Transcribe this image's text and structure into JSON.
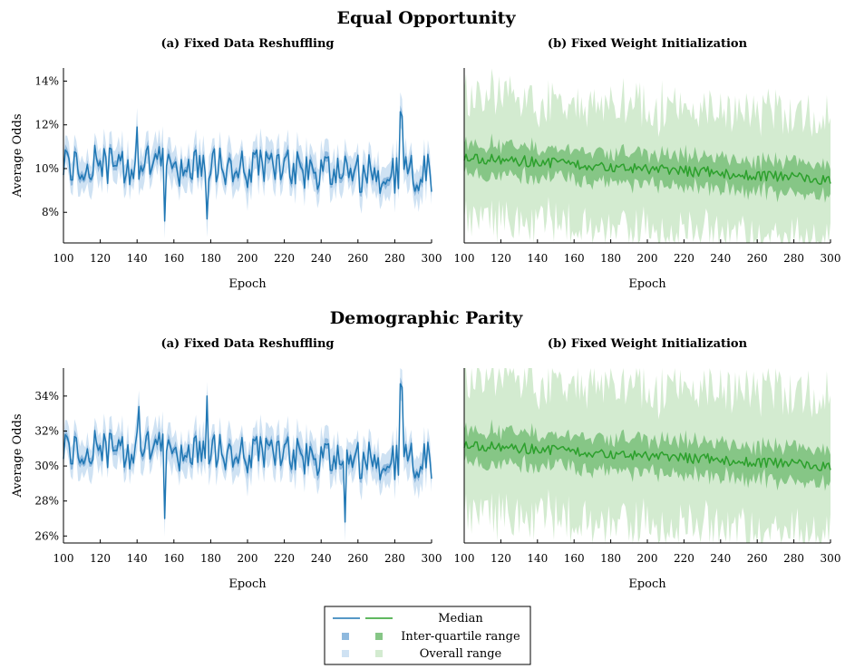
{
  "colors": {
    "blue_median": "#1f77b4",
    "blue_iqr": "#8fb9de",
    "blue_range": "#cfe2f3",
    "green_median": "#2ca02c",
    "green_iqr": "#86c686",
    "green_range": "#d3ebd0"
  },
  "legend": {
    "median": "Median",
    "iqr": "Inter-quartile range",
    "range": "Overall range"
  },
  "chart_data": [
    {
      "section_title": "Equal Opportunity",
      "panels": [
        {
          "type": "area",
          "title": "(a) Fixed Data Reshuffling",
          "xlabel": "Epoch",
          "ylabel": "Average Odds",
          "xlim": [
            100,
            300
          ],
          "ylim": [
            6.6,
            14.6
          ],
          "xticks": [
            100,
            120,
            140,
            160,
            180,
            200,
            220,
            240,
            260,
            280,
            300
          ],
          "yticks": [
            8,
            10,
            12,
            14
          ],
          "ytick_labels": [
            "8%",
            "10%",
            "12%",
            "14%"
          ],
          "color": "blue",
          "profile": {
            "seed": 11,
            "center": [
              10.2,
              9.7
            ],
            "noise": 0.95,
            "iqr_half": 0.22,
            "range_half": 0.55,
            "spikes": [
              [
                140,
                11.9
              ],
              [
                155,
                7.6
              ],
              [
                178,
                7.7
              ],
              [
                283,
                12.6
              ],
              [
                284,
                12.4
              ]
            ]
          }
        },
        {
          "type": "area",
          "title": "(b) Fixed Weight Initialization",
          "xlabel": "Epoch",
          "ylabel": "",
          "xlim": [
            100,
            300
          ],
          "ylim": [
            6.6,
            14.6
          ],
          "xticks": [
            100,
            120,
            140,
            160,
            180,
            200,
            220,
            240,
            260,
            280,
            300
          ],
          "yticks": [],
          "ytick_labels": [],
          "color": "green",
          "profile": {
            "seed": 23,
            "center": [
              10.5,
              9.5
            ],
            "noise": 0.25,
            "iqr_half": 0.7,
            "range_half": 2.1,
            "spikes": []
          }
        }
      ]
    },
    {
      "section_title": "Demographic Parity",
      "panels": [
        {
          "type": "area",
          "title": "(a) Fixed Data Reshuffling",
          "xlabel": "Epoch",
          "ylabel": "Average Odds",
          "xlim": [
            100,
            300
          ],
          "ylim": [
            25.6,
            35.6
          ],
          "xticks": [
            100,
            120,
            140,
            160,
            180,
            200,
            220,
            240,
            260,
            280,
            300
          ],
          "yticks": [
            26,
            28,
            30,
            32,
            34
          ],
          "ytick_labels": [
            "26%",
            "28%",
            "30%",
            "32%",
            "34%"
          ],
          "color": "blue",
          "profile": {
            "seed": 11,
            "center": [
              31.0,
              30.2
            ],
            "noise": 1.15,
            "iqr_half": 0.28,
            "range_half": 0.7,
            "spikes": [
              [
                141,
                33.4
              ],
              [
                155,
                27.0
              ],
              [
                178,
                34.0
              ],
              [
                283,
                34.7
              ],
              [
                284,
                34.5
              ],
              [
                253,
                26.8
              ]
            ]
          }
        },
        {
          "type": "area",
          "title": "(b) Fixed Weight Initialization",
          "xlabel": "Epoch",
          "ylabel": "",
          "xlim": [
            100,
            300
          ],
          "ylim": [
            25.6,
            35.6
          ],
          "xticks": [
            100,
            120,
            140,
            160,
            180,
            200,
            220,
            240,
            260,
            280,
            300
          ],
          "yticks": [],
          "ytick_labels": [],
          "color": "green",
          "profile": {
            "seed": 23,
            "center": [
              31.2,
              30.0
            ],
            "noise": 0.3,
            "iqr_half": 0.95,
            "range_half": 3.0,
            "spikes": []
          }
        }
      ]
    }
  ]
}
